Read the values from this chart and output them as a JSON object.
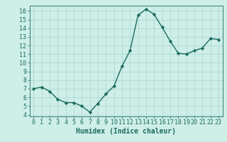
{
  "x": [
    0,
    1,
    2,
    3,
    4,
    5,
    6,
    7,
    8,
    9,
    10,
    11,
    12,
    13,
    14,
    15,
    16,
    17,
    18,
    19,
    20,
    21,
    22,
    23
  ],
  "y": [
    7.0,
    7.2,
    6.7,
    5.8,
    5.4,
    5.4,
    5.0,
    4.3,
    5.3,
    6.4,
    7.3,
    9.6,
    11.4,
    15.5,
    16.2,
    15.6,
    14.1,
    12.5,
    11.1,
    11.0,
    11.4,
    11.7,
    12.8,
    12.7
  ],
  "xlabel": "Humidex (Indice chaleur)",
  "xlim": [
    -0.5,
    23.5
  ],
  "ylim": [
    3.8,
    16.6
  ],
  "yticks": [
    4,
    5,
    6,
    7,
    8,
    9,
    10,
    11,
    12,
    13,
    14,
    15,
    16
  ],
  "xticks": [
    0,
    1,
    2,
    3,
    4,
    5,
    6,
    7,
    8,
    9,
    10,
    11,
    12,
    13,
    14,
    15,
    16,
    17,
    18,
    19,
    20,
    21,
    22,
    23
  ],
  "line_color": "#1a6b5e",
  "marker": "D",
  "marker_size": 2.2,
  "bg_color": "#ceeee8",
  "grid_color": "#a8d5cf",
  "tick_label_fontsize": 6,
  "xlabel_fontsize": 7,
  "linewidth": 1.0
}
